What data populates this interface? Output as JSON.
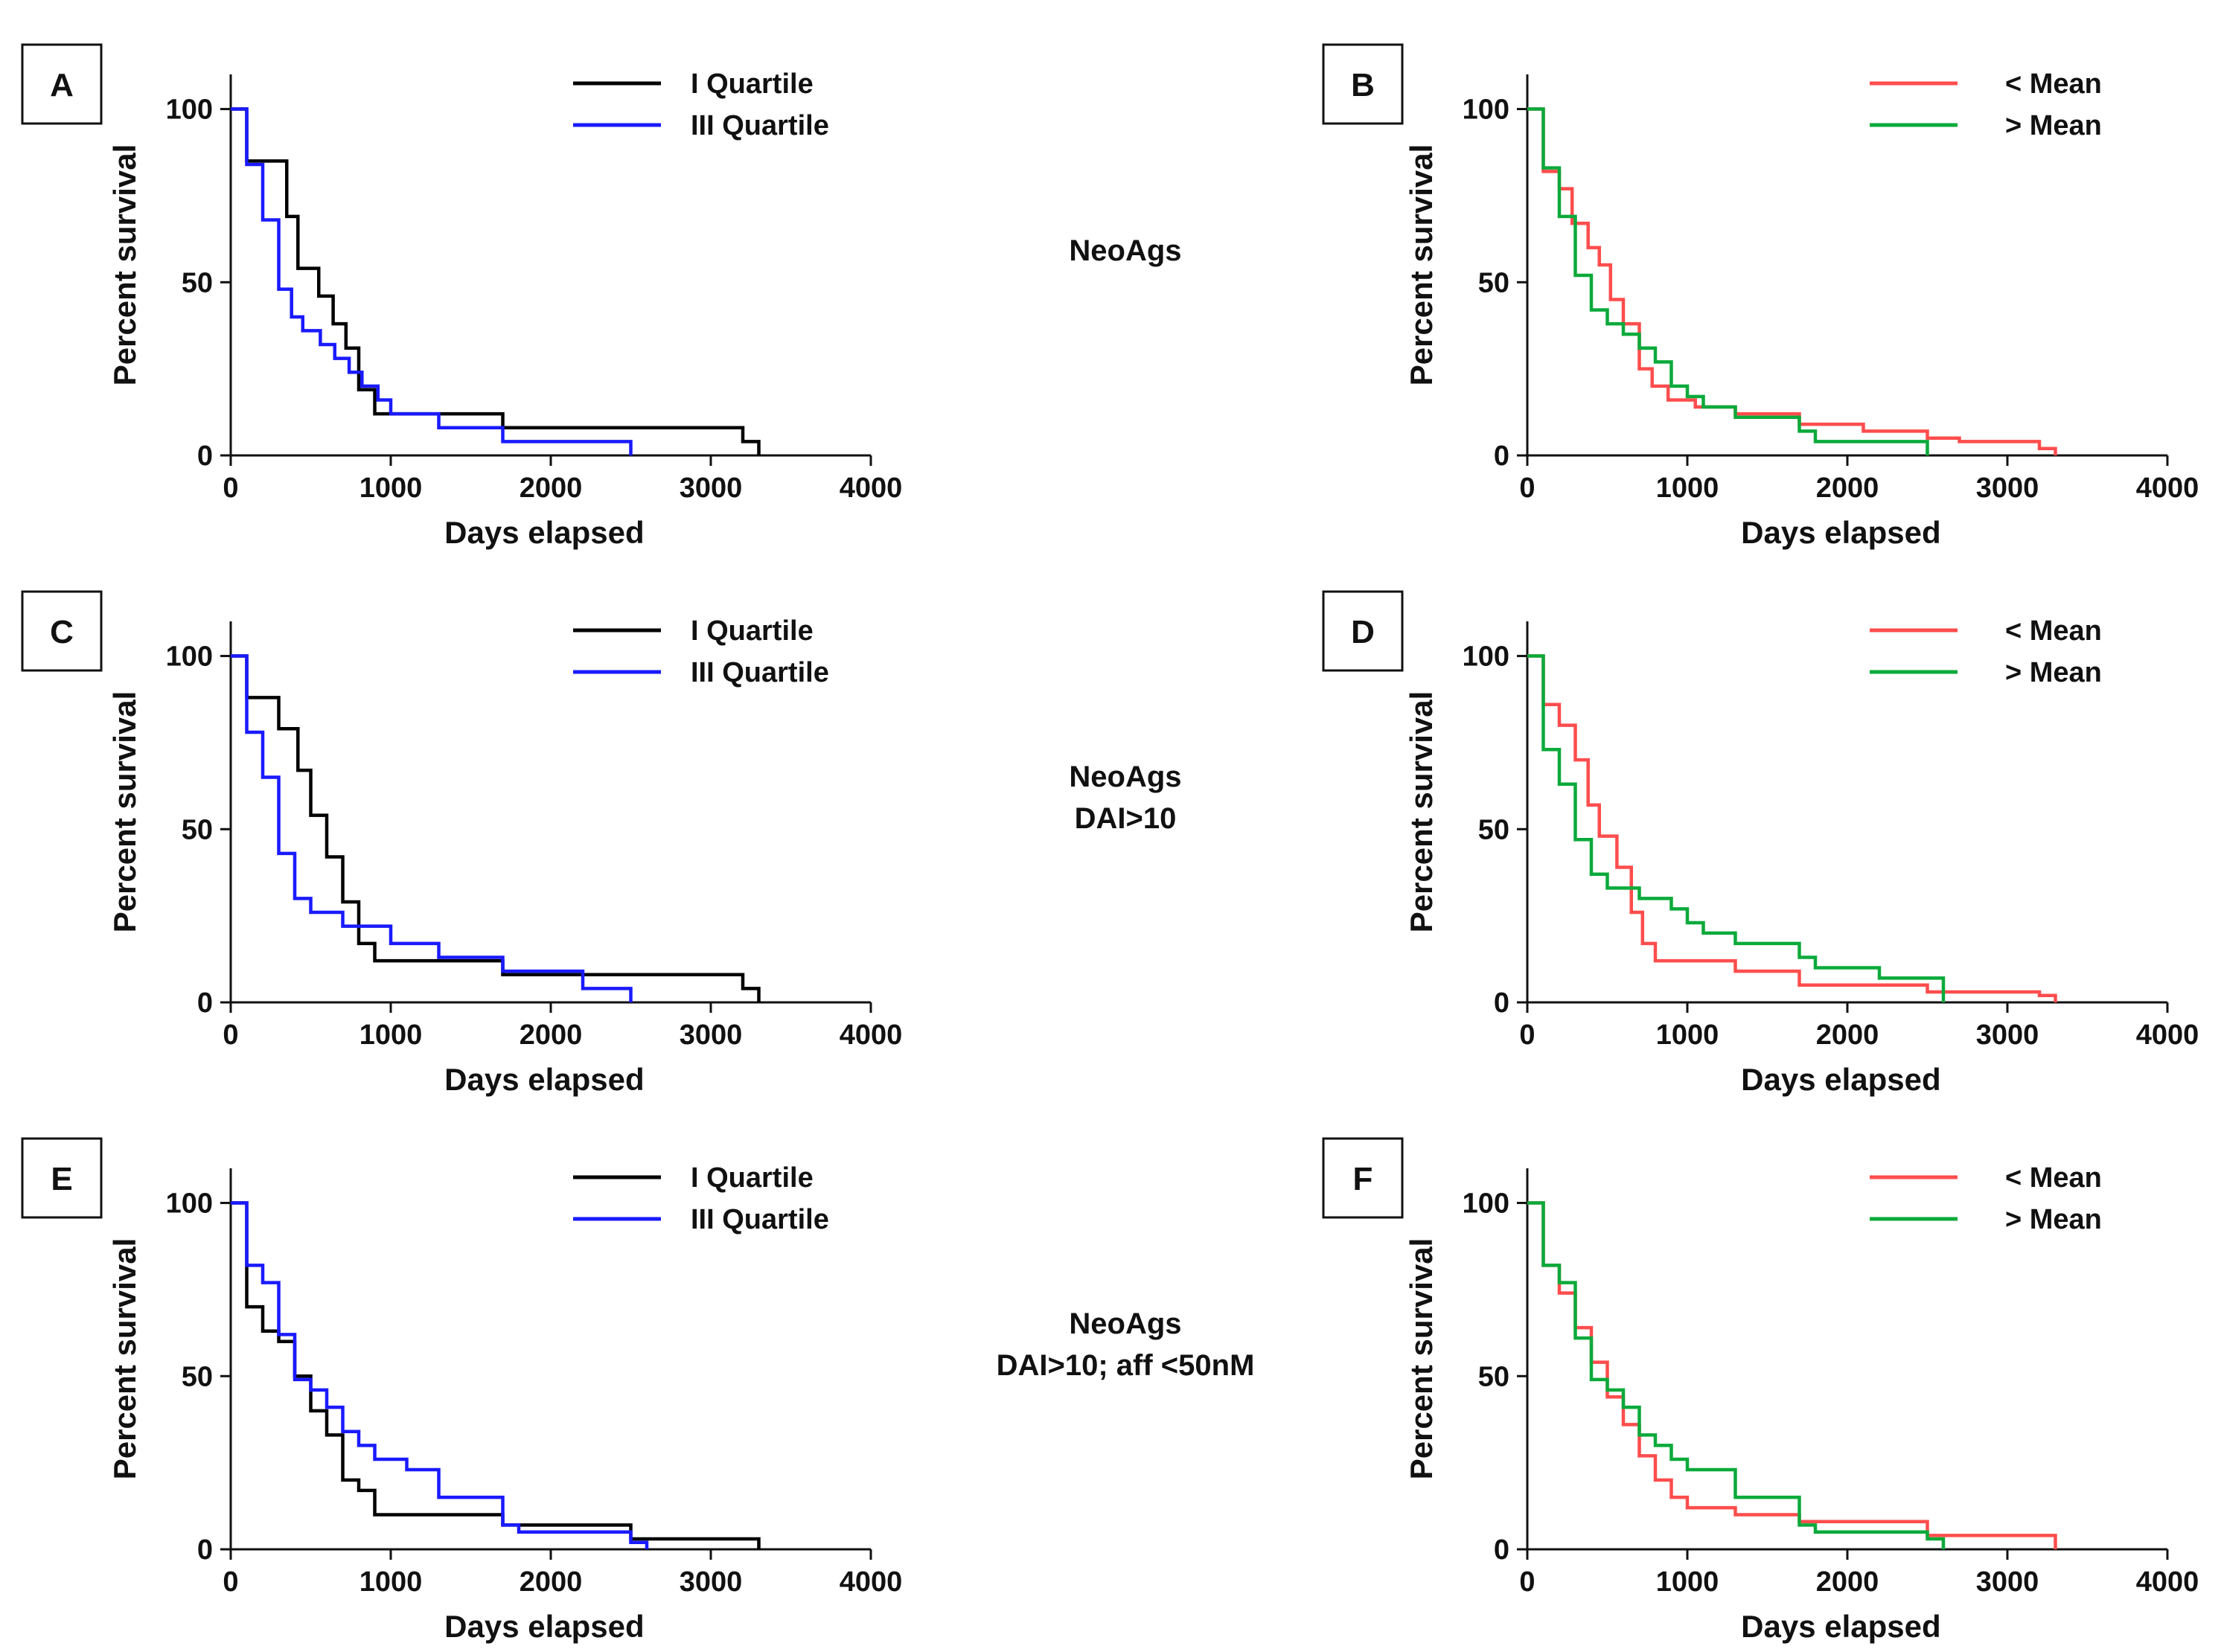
{
  "figure": {
    "row_labels": [
      [
        "NeoAgs"
      ],
      [
        "NeoAgs",
        "DAI>10"
      ],
      [
        "NeoAgs",
        "DAI>10; aff <50nM"
      ]
    ]
  },
  "colors": {
    "q1": "#000000",
    "q3": "#1a1aff",
    "below_mean": "#ff4d4d",
    "above_mean": "#0aaa3a"
  },
  "chart_data": [
    {
      "panel": "A",
      "type": "line",
      "step": true,
      "xlabel": "Days elapsed",
      "ylabel": "Percent survival",
      "xlim": [
        0,
        4000
      ],
      "ylim": [
        0,
        110
      ],
      "xticks": [
        "0",
        "1000",
        "2000",
        "3000",
        "4000"
      ],
      "yticks": [
        "0",
        "50",
        "100"
      ],
      "legend_position": "top-right",
      "series": [
        {
          "name": "I Quartile",
          "color_key": "q1",
          "x": [
            0,
            100,
            350,
            420,
            550,
            640,
            720,
            800,
            900,
            1000,
            1300,
            1700,
            2500,
            3200,
            3300
          ],
          "y": [
            100,
            85,
            69,
            54,
            46,
            38,
            31,
            19,
            12,
            12,
            12,
            8,
            8,
            4,
            0
          ]
        },
        {
          "name": "III Quartile",
          "color_key": "q3",
          "x": [
            0,
            100,
            200,
            300,
            380,
            450,
            560,
            650,
            740,
            820,
            920,
            1000,
            1300,
            1700,
            2500
          ],
          "y": [
            100,
            84,
            68,
            48,
            40,
            36,
            32,
            28,
            24,
            20,
            16,
            12,
            8,
            4,
            0
          ]
        }
      ]
    },
    {
      "panel": "B",
      "type": "line",
      "step": true,
      "xlabel": "Days elapsed",
      "ylabel": "Percent survival",
      "xlim": [
        0,
        4000
      ],
      "ylim": [
        0,
        110
      ],
      "xticks": [
        "0",
        "1000",
        "2000",
        "3000",
        "4000"
      ],
      "yticks": [
        "0",
        "50",
        "100"
      ],
      "legend_position": "top-right",
      "series": [
        {
          "name": "< Mean",
          "color_key": "below_mean",
          "x": [
            0,
            100,
            200,
            280,
            380,
            450,
            520,
            600,
            700,
            780,
            880,
            1050,
            1300,
            1700,
            2100,
            2500,
            2700,
            3200,
            3300
          ],
          "y": [
            100,
            82,
            77,
            67,
            60,
            55,
            45,
            38,
            25,
            20,
            16,
            14,
            12,
            9,
            7,
            5,
            4,
            2,
            0
          ]
        },
        {
          "name": "> Mean",
          "color_key": "above_mean",
          "x": [
            0,
            100,
            200,
            300,
            400,
            500,
            600,
            700,
            800,
            900,
            1000,
            1100,
            1300,
            1700,
            1800,
            2500
          ],
          "y": [
            100,
            83,
            69,
            52,
            42,
            38,
            35,
            31,
            27,
            20,
            17,
            14,
            11,
            7,
            4,
            0
          ]
        }
      ]
    },
    {
      "panel": "C",
      "type": "line",
      "step": true,
      "xlabel": "Days elapsed",
      "ylabel": "Percent survival",
      "xlim": [
        0,
        4000
      ],
      "ylim": [
        0,
        110
      ],
      "xticks": [
        "0",
        "1000",
        "2000",
        "3000",
        "4000"
      ],
      "yticks": [
        "0",
        "50",
        "100"
      ],
      "legend_position": "top-right",
      "series": [
        {
          "name": "I Quartile",
          "color_key": "q1",
          "x": [
            0,
            100,
            300,
            420,
            500,
            600,
            700,
            800,
            900,
            1000,
            1300,
            1700,
            2200,
            3200,
            3300
          ],
          "y": [
            100,
            88,
            79,
            67,
            54,
            42,
            29,
            17,
            12,
            12,
            12,
            8,
            8,
            4,
            0
          ]
        },
        {
          "name": "III Quartile",
          "color_key": "q3",
          "x": [
            0,
            100,
            200,
            300,
            400,
            500,
            700,
            1000,
            1300,
            1700,
            2200,
            2500
          ],
          "y": [
            100,
            78,
            65,
            43,
            30,
            26,
            22,
            17,
            13,
            9,
            4,
            0
          ]
        }
      ]
    },
    {
      "panel": "D",
      "type": "line",
      "step": true,
      "xlabel": "Days elapsed",
      "ylabel": "Percent survival",
      "xlim": [
        0,
        4000
      ],
      "ylim": [
        0,
        110
      ],
      "xticks": [
        "0",
        "1000",
        "2000",
        "3000",
        "4000"
      ],
      "yticks": [
        "0",
        "50",
        "100"
      ],
      "legend_position": "top-right",
      "series": [
        {
          "name": "< Mean",
          "color_key": "below_mean",
          "x": [
            0,
            100,
            200,
            300,
            380,
            450,
            560,
            650,
            720,
            800,
            900,
            1050,
            1300,
            1700,
            2500,
            3200,
            3300
          ],
          "y": [
            100,
            86,
            80,
            70,
            57,
            48,
            39,
            26,
            17,
            12,
            12,
            12,
            9,
            5,
            3,
            2,
            0
          ]
        },
        {
          "name": "> Mean",
          "color_key": "above_mean",
          "x": [
            0,
            100,
            200,
            300,
            400,
            500,
            700,
            900,
            1000,
            1100,
            1300,
            1700,
            1800,
            2200,
            2600
          ],
          "y": [
            100,
            73,
            63,
            47,
            37,
            33,
            30,
            27,
            23,
            20,
            17,
            13,
            10,
            7,
            0
          ]
        }
      ]
    },
    {
      "panel": "E",
      "type": "line",
      "step": true,
      "xlabel": "Days elapsed",
      "ylabel": "Percent survival",
      "xlim": [
        0,
        4000
      ],
      "ylim": [
        0,
        110
      ],
      "xticks": [
        "0",
        "1000",
        "2000",
        "3000",
        "4000"
      ],
      "yticks": [
        "0",
        "50",
        "100"
      ],
      "legend_position": "top-right",
      "series": [
        {
          "name": "I Quartile",
          "color_key": "q1",
          "x": [
            0,
            100,
            200,
            300,
            400,
            500,
            600,
            700,
            800,
            900,
            1700,
            2500,
            3300
          ],
          "y": [
            100,
            70,
            63,
            60,
            50,
            40,
            33,
            20,
            17,
            10,
            7,
            3,
            0
          ]
        },
        {
          "name": "III Quartile",
          "color_key": "q3",
          "x": [
            0,
            100,
            200,
            300,
            400,
            500,
            600,
            700,
            800,
            900,
            1100,
            1300,
            1700,
            1800,
            2500,
            2600
          ],
          "y": [
            100,
            82,
            77,
            62,
            49,
            46,
            41,
            34,
            30,
            26,
            23,
            15,
            7,
            5,
            2,
            0
          ]
        }
      ]
    },
    {
      "panel": "F",
      "type": "line",
      "step": true,
      "xlabel": "Days elapsed",
      "ylabel": "Percent survival",
      "xlim": [
        0,
        4000
      ],
      "ylim": [
        0,
        110
      ],
      "xticks": [
        "0",
        "1000",
        "2000",
        "3000",
        "4000"
      ],
      "yticks": [
        "0",
        "50",
        "100"
      ],
      "legend_position": "top-right",
      "series": [
        {
          "name": "< Mean",
          "color_key": "below_mean",
          "x": [
            0,
            100,
            200,
            300,
            400,
            500,
            600,
            700,
            800,
            900,
            1000,
            1300,
            1700,
            2500,
            3300
          ],
          "y": [
            100,
            82,
            74,
            64,
            54,
            44,
            36,
            27,
            20,
            15,
            12,
            10,
            8,
            4,
            0
          ]
        },
        {
          "name": "> Mean",
          "color_key": "above_mean",
          "x": [
            0,
            100,
            200,
            300,
            400,
            500,
            600,
            700,
            800,
            900,
            1000,
            1300,
            1700,
            1800,
            2500,
            2600
          ],
          "y": [
            100,
            82,
            77,
            61,
            49,
            46,
            41,
            33,
            30,
            26,
            23,
            15,
            7,
            5,
            3,
            0
          ]
        }
      ]
    }
  ]
}
